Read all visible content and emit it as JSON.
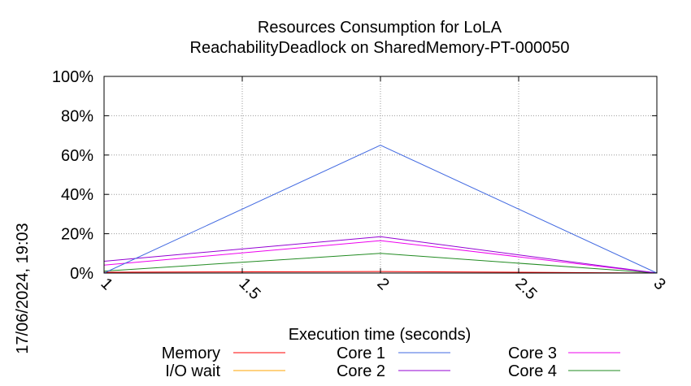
{
  "chart_data": {
    "type": "line",
    "title_line1": "Resources Consumption for LoLA",
    "title_line2": "ReachabilityDeadlock on SharedMemory-PT-000050",
    "xlabel": "Execution time (seconds)",
    "ylabel": "",
    "side_label": "17/06/2024, 19:03",
    "xlim": [
      1,
      3
    ],
    "ylim": [
      0,
      100
    ],
    "x_ticks": [
      {
        "value": 1,
        "label": "1"
      },
      {
        "value": 1.5,
        "label": "1.5"
      },
      {
        "value": 2,
        "label": "2"
      },
      {
        "value": 2.5,
        "label": "2.5"
      },
      {
        "value": 3,
        "label": "3"
      }
    ],
    "y_ticks": [
      {
        "value": 0,
        "label": "0%"
      },
      {
        "value": 20,
        "label": "20%"
      },
      {
        "value": 40,
        "label": "40%"
      },
      {
        "value": 60,
        "label": "60%"
      },
      {
        "value": 80,
        "label": "80%"
      },
      {
        "value": 100,
        "label": "100%"
      }
    ],
    "grid": true,
    "legend_position": "bottom",
    "series": [
      {
        "name": "Memory",
        "color": "#ff0000",
        "x": [
          1,
          2,
          3
        ],
        "y": [
          0.4,
          0.8,
          0
        ]
      },
      {
        "name": "I/O wait",
        "color": "#ffa500",
        "x": [
          1,
          2,
          3
        ],
        "y": [
          0,
          0,
          0
        ]
      },
      {
        "name": "Core 1",
        "color": "#4169e1",
        "x": [
          1,
          2,
          3
        ],
        "y": [
          0,
          65,
          0
        ]
      },
      {
        "name": "Core 2",
        "color": "#9400d3",
        "x": [
          1,
          2,
          3
        ],
        "y": [
          6,
          18.5,
          0
        ]
      },
      {
        "name": "Core 3",
        "color": "#ee00ee",
        "x": [
          1,
          2,
          3
        ],
        "y": [
          4,
          16.5,
          0
        ]
      },
      {
        "name": "Core 4",
        "color": "#228b22",
        "x": [
          1,
          2,
          3
        ],
        "y": [
          1,
          10,
          0
        ]
      }
    ]
  }
}
